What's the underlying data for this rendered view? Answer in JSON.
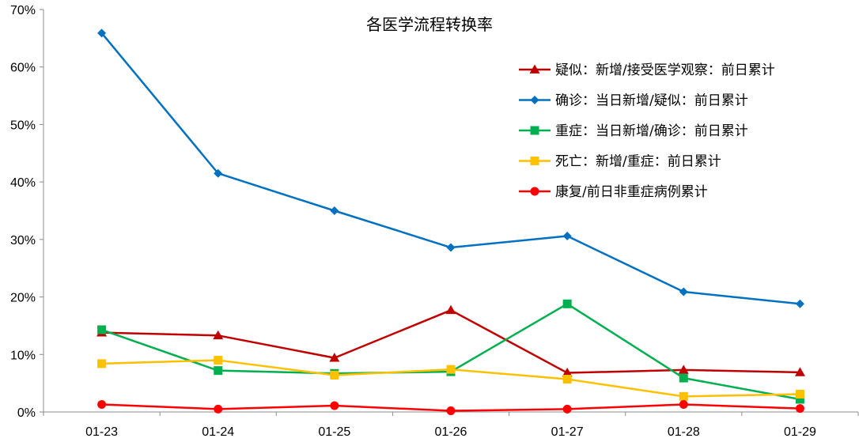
{
  "chart_data": {
    "type": "line",
    "title": "各医学流程转换率",
    "xlabel": "",
    "ylabel": "",
    "categories": [
      "01-23",
      "01-24",
      "01-25",
      "01-26",
      "01-27",
      "01-28",
      "01-29"
    ],
    "ylim": [
      0,
      70
    ],
    "yticks": [
      0,
      10,
      20,
      30,
      40,
      50,
      60,
      70
    ],
    "ytick_labels": [
      "0%",
      "10%",
      "20%",
      "30%",
      "40%",
      "50%",
      "60%",
      "70%"
    ],
    "grid": false,
    "legend_position": "top-right",
    "series": [
      {
        "name": "疑似：新增/接受医学观察：前日累计",
        "color": "#c00000",
        "marker": "triangle",
        "values": [
          13.8,
          13.3,
          9.4,
          17.7,
          6.8,
          7.3,
          6.9
        ]
      },
      {
        "name": "确诊：当日新增/疑似：前日累计",
        "color": "#0070c0",
        "marker": "diamond",
        "values": [
          65.9,
          41.5,
          35.0,
          28.6,
          30.6,
          20.9,
          18.8
        ]
      },
      {
        "name": "重症：当日新增/确诊：前日累计",
        "color": "#00b050",
        "marker": "square",
        "values": [
          14.3,
          7.2,
          6.7,
          7.0,
          18.8,
          5.9,
          2.2
        ]
      },
      {
        "name": "死亡：新增/重症：前日累计",
        "color": "#ffc000",
        "marker": "square",
        "values": [
          8.4,
          9.0,
          6.4,
          7.4,
          5.7,
          2.7,
          3.1
        ]
      },
      {
        "name": "康复/前日非重症病例累计",
        "color": "#ff0000",
        "marker": "circle",
        "values": [
          1.3,
          0.5,
          1.1,
          0.2,
          0.5,
          1.3,
          0.6
        ]
      }
    ]
  }
}
